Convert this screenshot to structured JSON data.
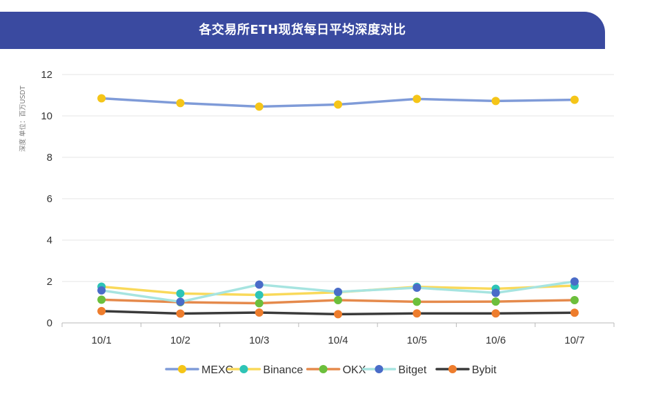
{
  "header": {
    "title": "各交易所ETH现货每日平均深度对比"
  },
  "chart_data": {
    "type": "line",
    "title": "各交易所ETH现货每日平均深度对比",
    "ylabel": "深度 单位：百万USDT",
    "xlabel": "",
    "categories": [
      "10/1",
      "10/2",
      "10/3",
      "10/4",
      "10/5",
      "10/6",
      "10/7"
    ],
    "ylim": [
      0,
      12
    ],
    "yticks": [
      0,
      2,
      4,
      6,
      8,
      10,
      12
    ],
    "grid": true,
    "legend_position": "bottom",
    "series": [
      {
        "name": "MEXC",
        "line_color": "#7f9bd8",
        "marker_color": "#f5c518",
        "values": [
          10.85,
          10.62,
          10.45,
          10.55,
          10.82,
          10.72,
          10.78
        ]
      },
      {
        "name": "Binance",
        "line_color": "#f9d95a",
        "marker_color": "#2ec4b6",
        "values": [
          1.75,
          1.42,
          1.35,
          1.48,
          1.74,
          1.65,
          1.8
        ]
      },
      {
        "name": "OKX",
        "line_color": "#e58a4c",
        "marker_color": "#6cbf3c",
        "values": [
          1.12,
          1.0,
          0.95,
          1.1,
          1.02,
          1.03,
          1.1
        ]
      },
      {
        "name": "Bitget",
        "line_color": "#a6e4e0",
        "marker_color": "#4a6cc8",
        "values": [
          1.57,
          1.02,
          1.85,
          1.5,
          1.7,
          1.45,
          2.0
        ]
      },
      {
        "name": "Bybit",
        "line_color": "#3a3a3a",
        "marker_color": "#ee7d2d",
        "values": [
          0.57,
          0.45,
          0.5,
          0.42,
          0.46,
          0.46,
          0.49
        ]
      }
    ]
  }
}
